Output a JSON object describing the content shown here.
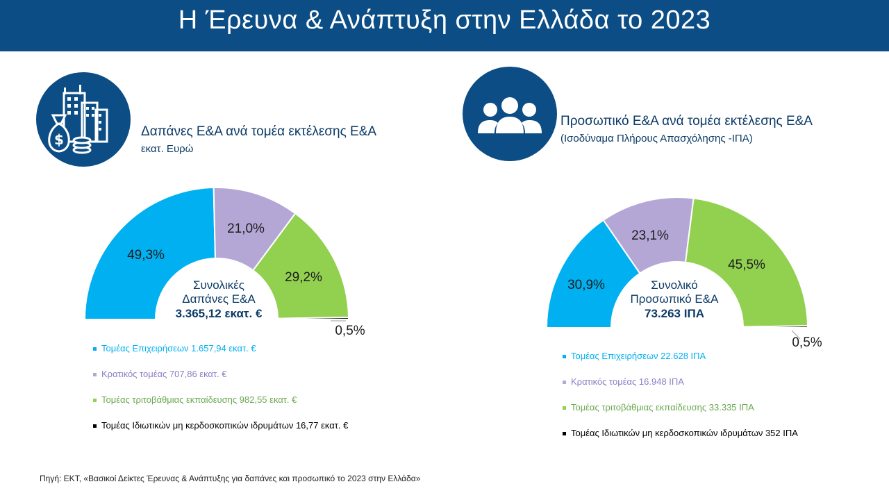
{
  "header": {
    "title": "Η Έρευνα & Ανάπτυξη στην Ελλάδα το 2023"
  },
  "colors": {
    "header_bg": "#0b4d84",
    "business": "#00b0f0",
    "government": "#b4a7d6",
    "higher_education": "#92d050",
    "private_nonprofit": "#000000"
  },
  "left": {
    "icon": "money-bag-buildings-icon",
    "title": "Δαπάνες Ε&Α ανά τομέα εκτέλεσης Ε&Α",
    "subtitle": "εκατ. Ευρώ",
    "center": {
      "line1": "Συνολικές",
      "line2": "Δαπάνες Ε&Α",
      "line3": "3.365,12 εκατ. €"
    },
    "legend": [
      "Τομέας Επιχειρήσεων 1.657,94 εκατ. €",
      "Κρατικός τομέας 707,86 εκατ. €",
      "Τομέας τριτοβάθμιας εκπαίδευσης 982,55 εκατ. €",
      "Τομέας Ιδιωτικών μη κερδοσκοπικών ιδρυμάτων 16,77 εκατ. €"
    ]
  },
  "right": {
    "icon": "people-group-icon",
    "title": "Προσωπικό Ε&Α ανά τομέα εκτέλεσης Ε&Α",
    "subtitle": "(Ισοδύναμα Πλήρους Απασχόλησης -ΙΠΑ)",
    "center": {
      "line1": "Συνολικό",
      "line2": "Προσωπικό Ε&Α",
      "line3": "73.263 ΙΠΑ"
    },
    "legend": [
      "Τομέας Επιχειρήσεων 22.628 ΙΠΑ",
      "Κρατικός τομέας 16.948 ΙΠΑ",
      "Τομέας τριτοβάθμιας εκπαίδευσης 33.335 ΙΠΑ",
      "Τομέας Ιδιωτικών μη κερδοσκοπικών ιδρυμάτων 352 ΙΠΑ"
    ]
  },
  "source": "Πηγή: ΕΚΤ, «Βασικοί Δείκτες Έρευνας & Ανάπτυξης για δαπάνες και προσωπικό το 2023 στην Ελλάδα»",
  "chart_data": [
    {
      "type": "pie",
      "variant": "semi-donut",
      "title": "Δαπάνες Ε&Α ανά τομέα εκτέλεσης Ε&Α",
      "unit": "εκατ. Ευρώ",
      "categories": [
        "Τομέας Επιχειρήσεων",
        "Κρατικός τομέας",
        "Τομέας τριτοβάθμιας εκπαίδευσης",
        "Τομέας Ιδιωτικών μη κερδοσκοπικών ιδρυμάτων"
      ],
      "values": [
        1657.94,
        707.86,
        982.55,
        16.77
      ],
      "percent_labels": [
        "49,3%",
        "21,0%",
        "29,2%",
        "0,5%"
      ],
      "total": 3365.12,
      "colors": [
        "#00b0f0",
        "#b4a7d6",
        "#92d050",
        "#000000"
      ],
      "legend_position": "bottom"
    },
    {
      "type": "pie",
      "variant": "semi-donut",
      "title": "Προσωπικό Ε&Α ανά τομέα εκτέλεσης Ε&Α",
      "unit": "ΙΠΑ",
      "categories": [
        "Τομέας Επιχειρήσεων",
        "Κρατικός τομέας",
        "Τομέας τριτοβάθμιας εκπαίδευσης",
        "Τομέας Ιδιωτικών μη κερδοσκοπικών ιδρυμάτων"
      ],
      "values": [
        22628,
        16948,
        33335,
        352
      ],
      "percent_labels": [
        "30,9%",
        "23,1%",
        "45,5%",
        "0,5%"
      ],
      "total": 73263,
      "colors": [
        "#00b0f0",
        "#b4a7d6",
        "#92d050",
        "#000000"
      ],
      "legend_position": "bottom"
    }
  ]
}
